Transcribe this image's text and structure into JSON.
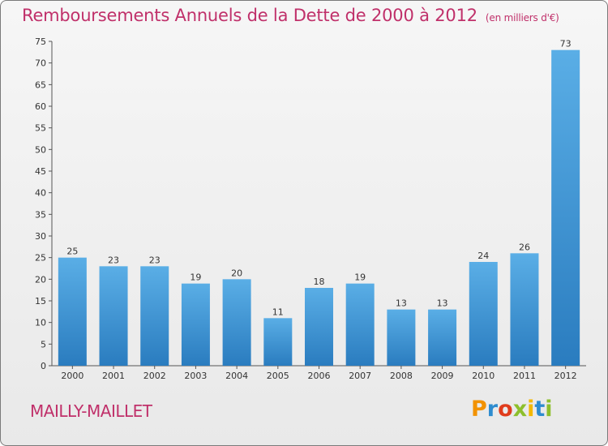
{
  "header": {
    "title": "Remboursements Annuels de la Dette de 2000 à 2012",
    "unit": "(en milliers d'€)"
  },
  "footer": {
    "town": "MAILLY-MAILLET",
    "logo_text": "Proxiti"
  },
  "colors": {
    "title": "#c0306a",
    "bar_light": "#5aaee6",
    "bar_dark": "#2a7cbf"
  },
  "chart_data": {
    "type": "bar",
    "title": "Remboursements Annuels de la Dette de 2000 à 2012",
    "xlabel": "",
    "ylabel": "",
    "categories": [
      "2000",
      "2001",
      "2002",
      "2003",
      "2004",
      "2005",
      "2006",
      "2007",
      "2008",
      "2009",
      "2010",
      "2011",
      "2012"
    ],
    "values": [
      25,
      23,
      23,
      19,
      20,
      11,
      18,
      19,
      13,
      13,
      24,
      26,
      73
    ],
    "ylim": [
      0,
      75
    ],
    "yticks": [
      0,
      5,
      10,
      15,
      20,
      25,
      30,
      35,
      40,
      45,
      50,
      55,
      60,
      65,
      70,
      75
    ],
    "grid": false,
    "legend": "none"
  }
}
